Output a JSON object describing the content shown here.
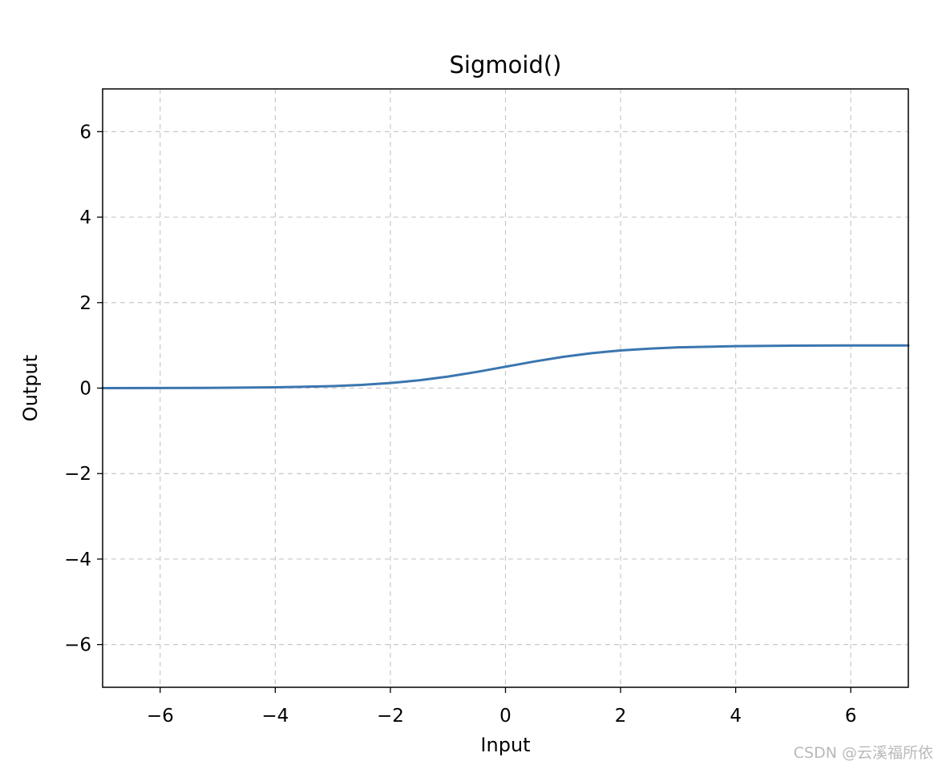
{
  "chart_data": {
    "type": "line",
    "title": "Sigmoid()",
    "xlabel": "Input",
    "ylabel": "Output",
    "xlim": [
      -7,
      7
    ],
    "ylim": [
      -7,
      7
    ],
    "x_ticks": [
      -6,
      -4,
      -2,
      0,
      2,
      4,
      6
    ],
    "y_ticks": [
      -6,
      -4,
      -2,
      0,
      2,
      4,
      6
    ],
    "x_tick_labels": [
      "−6",
      "−4",
      "−2",
      "0",
      "2",
      "4",
      "6"
    ],
    "y_tick_labels": [
      "−6",
      "−4",
      "−2",
      "0",
      "2",
      "4",
      "6"
    ],
    "grid": true,
    "grid_style": "dashed",
    "series": [
      {
        "color": "#3a76af",
        "x": [
          -7,
          -6,
          -5,
          -4,
          -3,
          -2.5,
          -2,
          -1.5,
          -1,
          -0.5,
          0,
          0.5,
          1,
          1.5,
          2,
          2.5,
          3,
          4,
          5,
          6,
          7
        ],
        "y": [
          0.0009,
          0.0025,
          0.0067,
          0.018,
          0.047,
          0.076,
          0.119,
          0.182,
          0.269,
          0.378,
          0.5,
          0.622,
          0.731,
          0.818,
          0.881,
          0.924,
          0.953,
          0.982,
          0.993,
          0.998,
          0.999
        ]
      }
    ]
  },
  "watermark": "CSDN @云溪福所依"
}
